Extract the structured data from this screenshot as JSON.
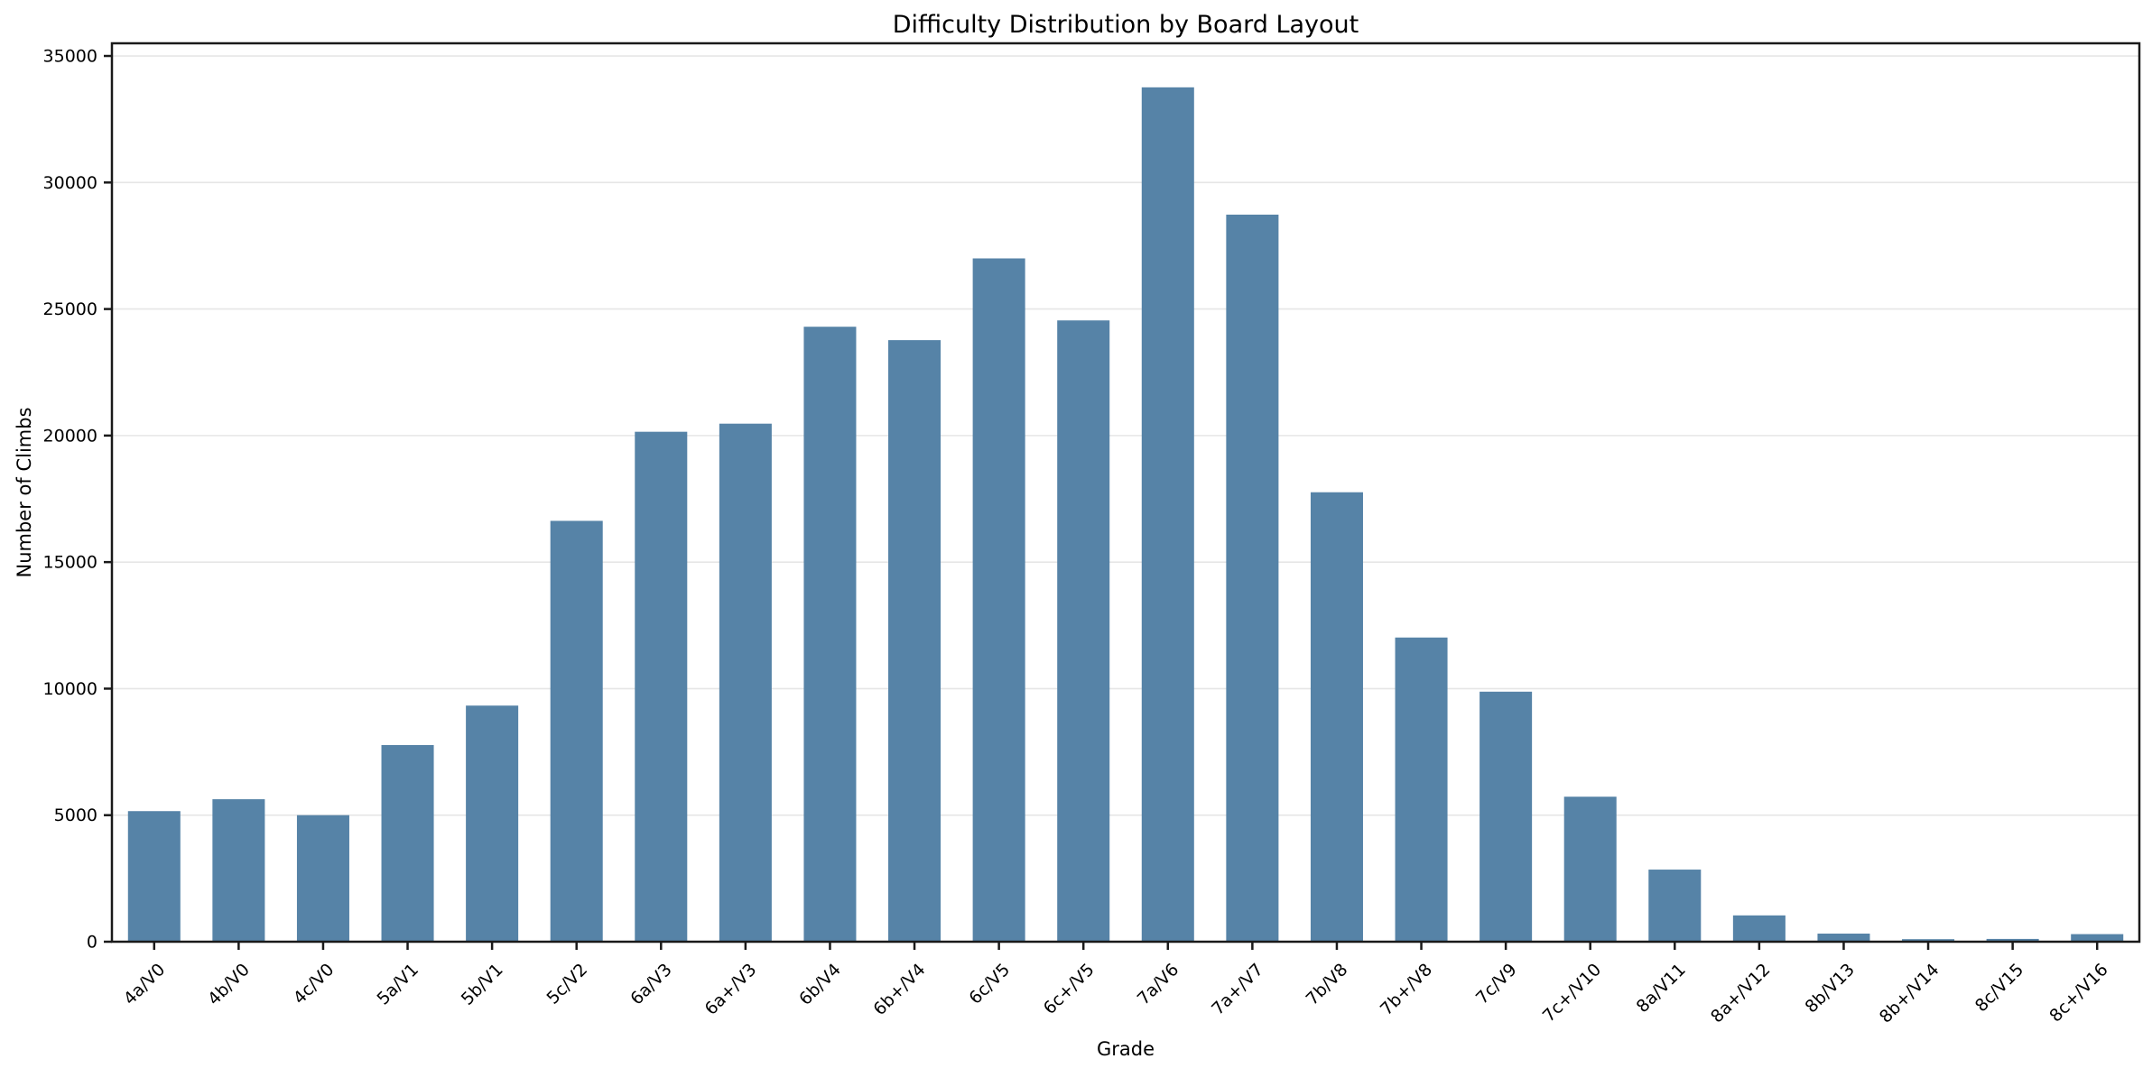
{
  "chart_data": {
    "type": "bar",
    "title": "Difficulty Distribution by Board Layout",
    "xlabel": "Grade",
    "ylabel": "Number of Climbs",
    "categories": [
      "4a/V0",
      "4b/V0",
      "4c/V0",
      "5a/V1",
      "5b/V1",
      "5c/V2",
      "6a/V3",
      "6a+/V3",
      "6b/V4",
      "6b+/V4",
      "6c/V5",
      "6c+/V5",
      "7a/V6",
      "7a+/V7",
      "7b/V8",
      "7b+/V8",
      "7c/V9",
      "7c+/V10",
      "8a/V11",
      "8a+/V12",
      "8b/V13",
      "8b+/V14",
      "8c/V15",
      "8c+/V16"
    ],
    "values": [
      5160,
      5630,
      5000,
      7770,
      9330,
      16630,
      20150,
      20470,
      24300,
      23770,
      27000,
      24550,
      33760,
      28730,
      17760,
      12020,
      9880,
      5730,
      2850,
      1040,
      320,
      100,
      110,
      300
    ],
    "ylim": [
      0,
      35500
    ],
    "yticks": [
      0,
      5000,
      10000,
      15000,
      20000,
      25000,
      30000,
      35000
    ],
    "x_tick_rotation_deg": 45,
    "grid": "horizontal",
    "legend": "none",
    "bar_color": "#5683a7",
    "grid_color": "#e6e6e6",
    "spine_color": "#1a1a1a",
    "text_color": "#000000",
    "background_color": "#ffffff"
  }
}
